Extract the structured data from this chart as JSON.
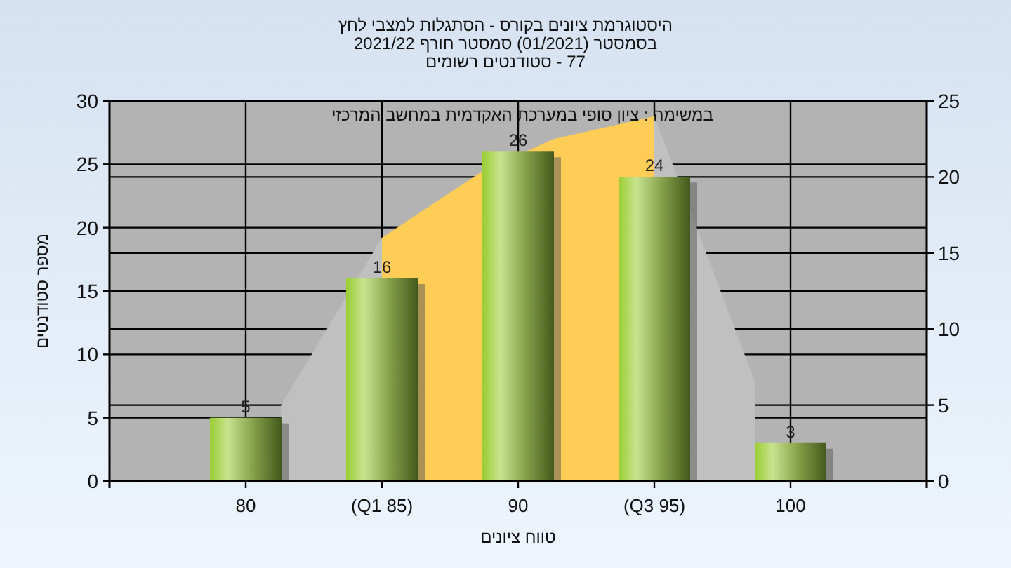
{
  "chart_data": {
    "type": "bar",
    "title": "היסטוגרמת ציונים בקורס - הסתגלות למצבי לחץ",
    "subtitle": "בסמסטר  (01/2021)  סמסטר חורף 2021/22\n77 - סטודנטים רשומים",
    "xlabel": "טווח ציונים",
    "ylabel": "מספר סטודנטים",
    "annotations": [
      "במשימה : ציון סופי במערכת האקדמית במחשב המרכזי"
    ],
    "x": [
      80,
      85,
      90,
      95,
      100
    ],
    "series": [
      {
        "type": "area",
        "axis": "y2",
        "color": "#c0c0c0",
        "x": [
          81.3,
          85,
          95,
          98.7
        ],
        "values": [
          5,
          16,
          24,
          6.5
        ]
      },
      {
        "type": "area",
        "axis": "y2",
        "color": "#ffcc55",
        "x": [
          85,
          88.7,
          91.3,
          95
        ],
        "values": [
          16,
          20.4,
          22.5,
          24
        ]
      },
      {
        "color": "#9acd32",
        "values": [
          5,
          16,
          26,
          24,
          3
        ],
        "value_labels": [
          "5",
          "16",
          "26",
          "24",
          "3"
        ]
      }
    ],
    "xlim": [
      75,
      105
    ],
    "xticks": [
      80,
      {
        "value": 85,
        "label": "(Q1 85)"
      },
      90,
      {
        "value": 95,
        "label": "(Q3 95)"
      },
      100
    ],
    "ylim": [
      0,
      30
    ],
    "yticks": [
      0,
      5,
      10,
      15,
      20,
      25,
      30
    ],
    "y2lim": [
      0,
      25
    ],
    "y2ticks": [
      0,
      5,
      10,
      15,
      20,
      25
    ],
    "grid": true
  }
}
